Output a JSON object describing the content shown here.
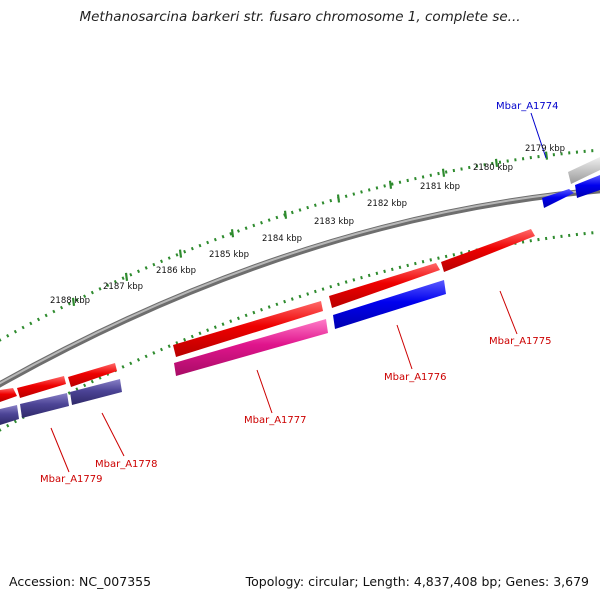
{
  "title": "Methanosarcina barkeri str. fusaro chromosome 1, complete se...",
  "footer": {
    "accession": "Accession: NC_007355",
    "summary": "Topology: circular; Length: 4,837,408 bp; Genes: 3,679"
  },
  "scale_ticks": [
    {
      "label": "2179 kbp"
    },
    {
      "label": "2180 kbp"
    },
    {
      "label": "2181 kbp"
    },
    {
      "label": "2182 kbp"
    },
    {
      "label": "2183 kbp"
    },
    {
      "label": "2184 kbp"
    },
    {
      "label": "2185 kbp"
    },
    {
      "label": "2186 kbp"
    },
    {
      "label": "2187 kbp"
    },
    {
      "label": "2188 kbp"
    }
  ],
  "gene_labels": [
    {
      "name": "Mbar_A1774",
      "color": "#0000cc"
    },
    {
      "name": "Mbar_A1775",
      "color": "#cc0000"
    },
    {
      "name": "Mbar_A1776",
      "color": "#cc0000"
    },
    {
      "name": "Mbar_A1777",
      "color": "#cc0000"
    },
    {
      "name": "Mbar_A1778",
      "color": "#cc0000"
    },
    {
      "name": "Mbar_A1779",
      "color": "#cc0000"
    }
  ],
  "colors": {
    "backbone": "#8a8a8a",
    "forward_gene": "#e00000",
    "blue_gene": "#0000ee",
    "pink_gene": "#e0148c",
    "purple_gene": "#4c4496",
    "grey_gene": "#bdbdbd",
    "tick_dots": "#2e8b2e"
  }
}
